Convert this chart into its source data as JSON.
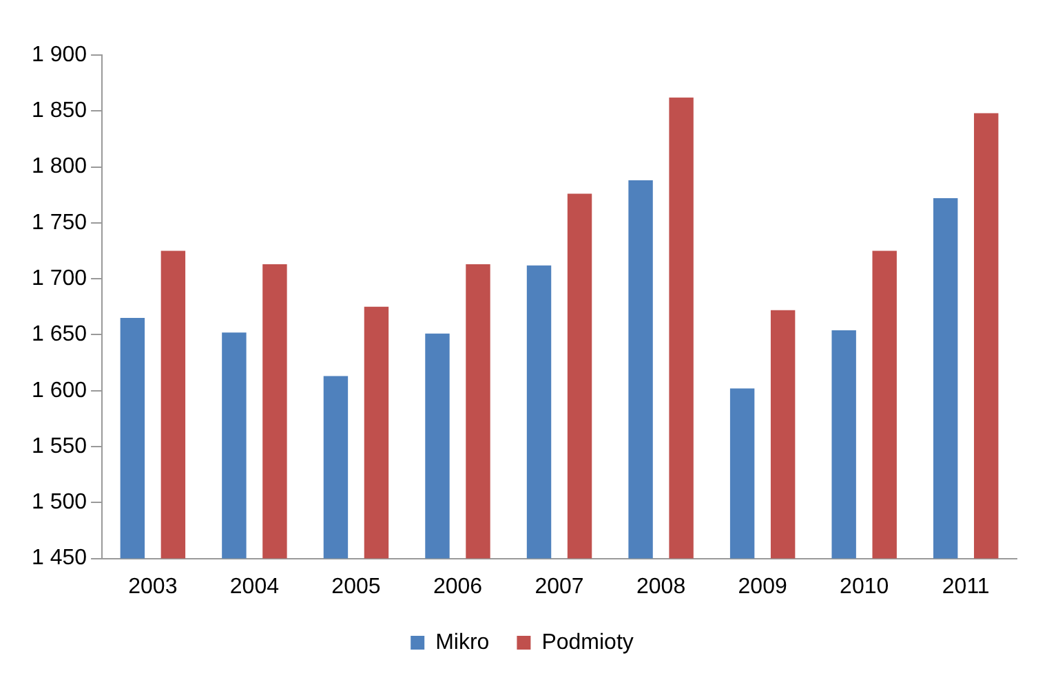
{
  "chart_data": {
    "type": "bar",
    "categories": [
      "2003",
      "2004",
      "2005",
      "2006",
      "2007",
      "2008",
      "2009",
      "2010",
      "2011"
    ],
    "series": [
      {
        "name": "Mikro",
        "color": "#4f81bd",
        "values": [
          1665,
          1652,
          1613,
          1651,
          1712,
          1788,
          1602,
          1654,
          1772
        ]
      },
      {
        "name": "Podmioty",
        "color": "#c0504d",
        "values": [
          1725,
          1713,
          1675,
          1713,
          1776,
          1862,
          1672,
          1725,
          1848
        ]
      }
    ],
    "ylim": [
      1450,
      1900
    ],
    "yticks": [
      {
        "value": 1450,
        "label": "1 450"
      },
      {
        "value": 1500,
        "label": "1 500"
      },
      {
        "value": 1550,
        "label": "1 550"
      },
      {
        "value": 1600,
        "label": "1 600"
      },
      {
        "value": 1650,
        "label": "1 650"
      },
      {
        "value": 1700,
        "label": "1 700"
      },
      {
        "value": 1750,
        "label": "1 750"
      },
      {
        "value": 1800,
        "label": "1 800"
      },
      {
        "value": 1850,
        "label": "1 850"
      },
      {
        "value": 1900,
        "label": "1 900"
      }
    ],
    "grid": false,
    "legend": "bottom"
  }
}
